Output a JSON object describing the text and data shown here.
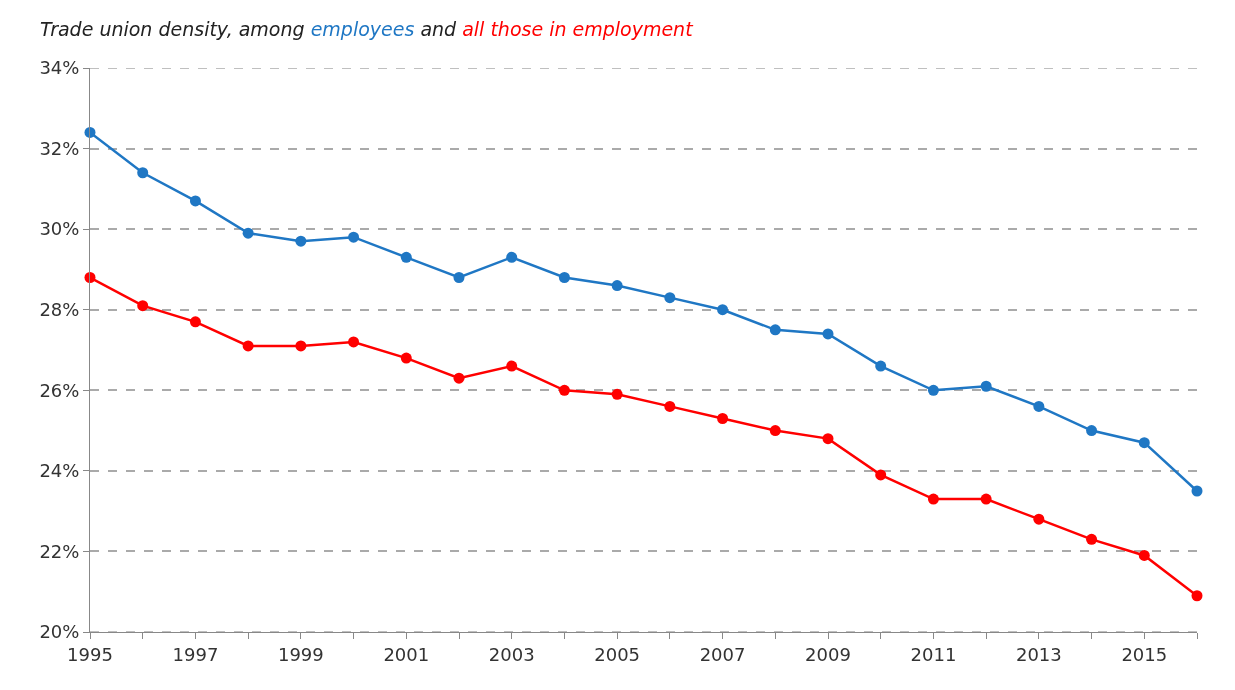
{
  "chart_data": {
    "type": "line",
    "annotations": [
      "Trade union density, among",
      "and"
    ],
    "x": [
      1995,
      1996,
      1997,
      1998,
      1999,
      2000,
      2001,
      2002,
      2003,
      2004,
      2005,
      2006,
      2007,
      2008,
      2009,
      2010,
      2011,
      2012,
      2013,
      2014,
      2015,
      2016
    ],
    "series": [
      {
        "name": "employees",
        "color": "#1f77c4",
        "values": [
          32.4,
          31.4,
          30.7,
          29.9,
          29.7,
          29.8,
          29.3,
          28.8,
          29.3,
          28.8,
          28.6,
          28.3,
          28.0,
          27.5,
          27.4,
          26.6,
          26.0,
          26.1,
          25.6,
          25.0,
          24.7,
          23.5
        ]
      },
      {
        "name": "all those in employment",
        "color": "#ff0000",
        "values": [
          28.8,
          28.1,
          27.7,
          27.1,
          27.1,
          27.2,
          26.8,
          26.3,
          26.6,
          26.0,
          25.9,
          25.6,
          25.3,
          25.0,
          24.8,
          23.9,
          23.3,
          23.3,
          22.8,
          22.3,
          21.9,
          20.9
        ]
      }
    ],
    "xlim": [
      1995,
      2016
    ],
    "xticks": [
      1995,
      {
        "value": 1996,
        "label": null
      },
      1997,
      {
        "value": 1998,
        "label": null
      },
      1999,
      {
        "value": 2000,
        "label": null
      },
      2001,
      {
        "value": 2002,
        "label": null
      },
      2003,
      {
        "value": 2004,
        "label": null
      },
      2005,
      {
        "value": 2006,
        "label": null
      },
      2007,
      {
        "value": 2008,
        "label": null
      },
      2009,
      {
        "value": 2010,
        "label": null
      },
      2011,
      {
        "value": 2012,
        "label": null
      },
      2013,
      {
        "value": 2014,
        "label": null
      },
      2015,
      {
        "value": 2016,
        "label": null
      }
    ],
    "ylim": [
      20,
      34
    ],
    "yticks": [
      {
        "value": 20,
        "label": "20%"
      },
      {
        "value": 22,
        "label": "22%"
      },
      {
        "value": 24,
        "label": "24%"
      },
      {
        "value": 26,
        "label": "26%"
      },
      {
        "value": 28,
        "label": "28%"
      },
      {
        "value": 30,
        "label": "30%"
      },
      {
        "value": 32,
        "label": "32%"
      },
      {
        "value": 34,
        "label": "34%"
      }
    ],
    "grid": "y",
    "legend": false,
    "marker": "circle",
    "line_style": "solid"
  }
}
